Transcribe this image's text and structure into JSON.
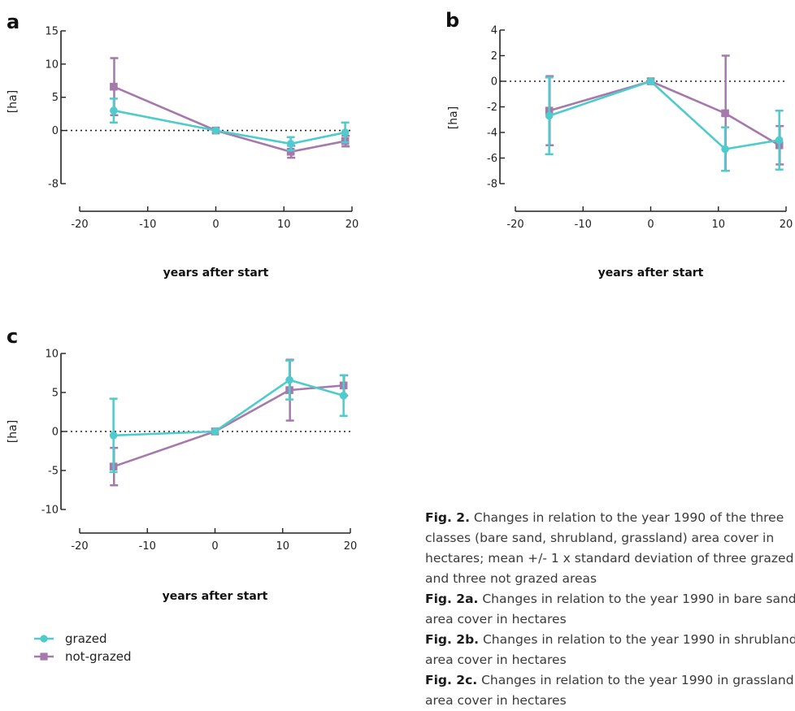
{
  "chart_data": [
    {
      "type": "line",
      "panel_label": "a",
      "xlabel": "years after start",
      "ylabel": "[ha]",
      "xlim": [
        -20,
        20
      ],
      "ylim": [
        -8,
        15
      ],
      "x_ticks": [
        -20,
        -10,
        0,
        10,
        20
      ],
      "y_ticks": [
        15,
        10,
        5,
        0,
        -8
      ],
      "reference_line": 0,
      "x": [
        -15,
        0,
        11,
        19
      ],
      "series": [
        {
          "name": "grazed",
          "values": [
            3.0,
            0.0,
            -2.0,
            -0.3
          ],
          "error": [
            1.8,
            0,
            1.0,
            1.5
          ]
        },
        {
          "name": "not-grazed",
          "values": [
            6.6,
            0.0,
            -3.2,
            -1.6
          ],
          "error": [
            4.3,
            0,
            0.9,
            0.8
          ]
        }
      ]
    },
    {
      "type": "line",
      "panel_label": "b",
      "xlabel": "years after start",
      "ylabel": "[ha]",
      "xlim": [
        -20,
        20
      ],
      "ylim": [
        -8,
        4
      ],
      "x_ticks": [
        -20,
        -10,
        0,
        10,
        20
      ],
      "y_ticks": [
        4,
        2,
        0,
        -2,
        -4,
        -6,
        -8
      ],
      "reference_line": 0,
      "x": [
        -15,
        0,
        11,
        19
      ],
      "series": [
        {
          "name": "grazed",
          "values": [
            -2.7,
            0.0,
            -5.3,
            -4.6
          ],
          "error": [
            3.0,
            0,
            1.7,
            2.3
          ]
        },
        {
          "name": "not-grazed",
          "values": [
            -2.3,
            0.0,
            -2.5,
            -5.0
          ],
          "error": [
            2.7,
            0,
            4.5,
            1.5
          ]
        }
      ]
    },
    {
      "type": "line",
      "panel_label": "c",
      "xlabel": "years after start",
      "ylabel": "[ha]",
      "xlim": [
        -20,
        20
      ],
      "ylim": [
        -10,
        10
      ],
      "x_ticks": [
        -20,
        -10,
        0,
        10,
        20
      ],
      "y_ticks": [
        10,
        5,
        0,
        -5,
        -10
      ],
      "reference_line": 0,
      "x": [
        -15,
        0,
        11,
        19
      ],
      "series": [
        {
          "name": "grazed",
          "values": [
            -0.5,
            0.0,
            6.6,
            4.6
          ],
          "error": [
            4.7,
            0,
            2.5,
            2.6
          ]
        },
        {
          "name": "not-grazed",
          "values": [
            -4.5,
            0.0,
            5.3,
            5.9
          ],
          "error": [
            2.4,
            0,
            3.9,
            1.3
          ]
        }
      ]
    }
  ],
  "legend": [
    {
      "label": "grazed",
      "color": "#4ecbcc",
      "marker": "circle"
    },
    {
      "label": "not-grazed",
      "color": "#a679ac",
      "marker": "square"
    }
  ],
  "colors": {
    "grazed": "#4ecbcc",
    "not_grazed": "#a679ac"
  },
  "caption": [
    {
      "bold": "Fig. 2.",
      "text": " Changes in relation to the year 1990 of the three classes (bare sand, shrubland, grassland) area cover in hectares; mean +/- 1 x standard deviation of three grazed and three not grazed areas"
    },
    {
      "bold": "Fig. 2a.",
      "text": " Changes in relation to the year 1990 in bare sand area cover in hectares"
    },
    {
      "bold": "Fig. 2b.",
      "text": " Changes in relation to the year 1990 in shrubland area cover in hectares"
    },
    {
      "bold": "Fig. 2c.",
      "text": " Changes in relation to the year 1990 in grassland area cover in hectares"
    }
  ]
}
